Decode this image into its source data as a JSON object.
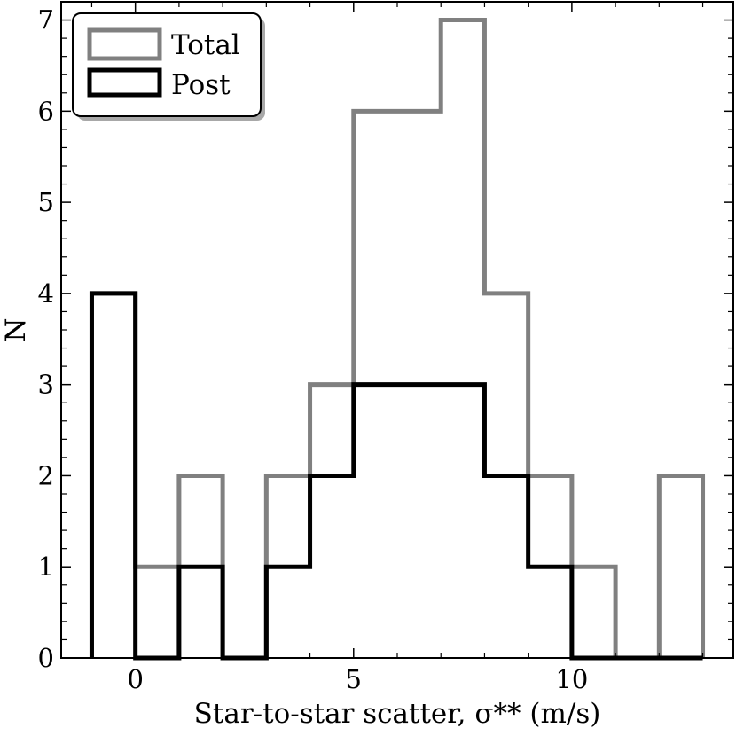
{
  "chart_data": {
    "type": "histogram",
    "xlabel": "Star-to-star scatter, σ** (m/s)",
    "ylabel": "N",
    "xlim": [
      -1.7,
      13.7
    ],
    "ylim": [
      0,
      7.2
    ],
    "xticks": [
      0,
      5,
      10
    ],
    "yticks": [
      0,
      1,
      2,
      3,
      4,
      5,
      6,
      7
    ],
    "bin_edges": [
      -1,
      0,
      1,
      2,
      3,
      4,
      5,
      6,
      7,
      8,
      9,
      10,
      11,
      12,
      13
    ],
    "series": [
      {
        "name": "Total",
        "color": "#808080",
        "values": [
          4,
          1,
          2,
          0,
          2,
          3,
          6,
          6,
          7,
          4,
          2,
          1,
          0,
          2
        ]
      },
      {
        "name": "Post",
        "color": "#000000",
        "values": [
          4,
          0,
          1,
          0,
          1,
          2,
          3,
          3,
          3,
          2,
          1,
          0,
          0,
          0
        ]
      }
    ],
    "legend": {
      "position": "top-left",
      "entries": [
        "Total",
        "Post"
      ]
    },
    "grid": false
  }
}
